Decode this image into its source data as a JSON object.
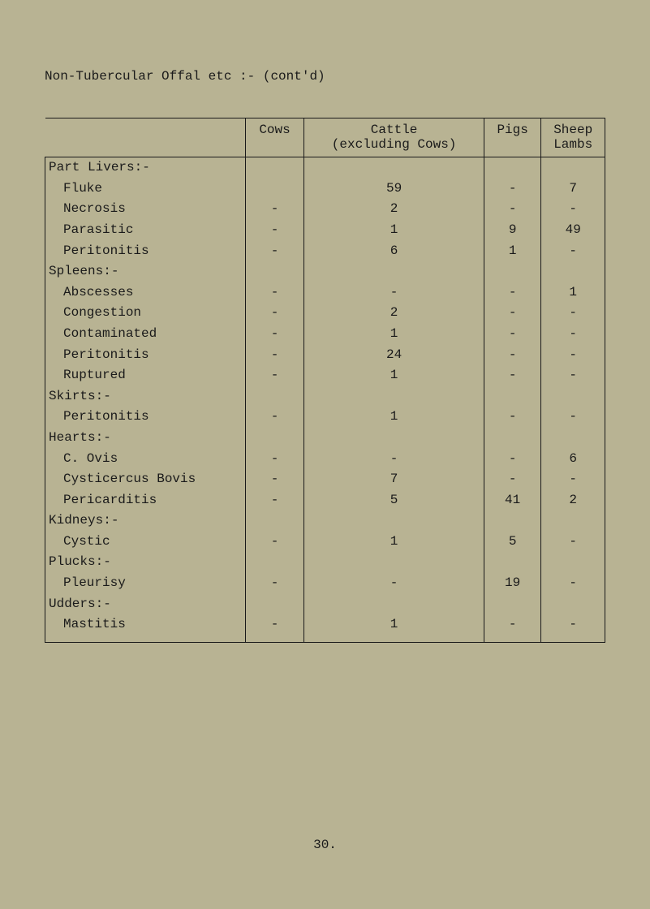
{
  "title": "Non-Tubercular Offal etc  :-  (cont'd)",
  "columns": {
    "cows": "Cows",
    "cattle_l1": "Cattle",
    "cattle_l2": "(excluding Cows)",
    "pigs": "Pigs",
    "sheep_l1": "Sheep",
    "sheep_l2": "Lambs"
  },
  "rows": [
    {
      "type": "section",
      "label": "Part Livers:-"
    },
    {
      "type": "data",
      "label": "Fluke",
      "cows": "",
      "cattle": "59",
      "pigs": "-",
      "sheep": "7"
    },
    {
      "type": "data",
      "label": "Necrosis",
      "cows": "-",
      "cattle": "2",
      "pigs": "-",
      "sheep": "-"
    },
    {
      "type": "data",
      "label": "Parasitic",
      "cows": "-",
      "cattle": "1",
      "pigs": "9",
      "sheep": "49"
    },
    {
      "type": "data",
      "label": "Peritonitis",
      "cows": "-",
      "cattle": "6",
      "pigs": "1",
      "sheep": "-"
    },
    {
      "type": "section",
      "label": "Spleens:-"
    },
    {
      "type": "data",
      "label": "Abscesses",
      "cows": "-",
      "cattle": "-",
      "pigs": "-",
      "sheep": "1"
    },
    {
      "type": "data",
      "label": "Congestion",
      "cows": "-",
      "cattle": "2",
      "pigs": "-",
      "sheep": "-"
    },
    {
      "type": "data",
      "label": "Contaminated",
      "cows": "-",
      "cattle": "1",
      "pigs": "-",
      "sheep": "-"
    },
    {
      "type": "data",
      "label": "Peritonitis",
      "cows": "-",
      "cattle": "24",
      "pigs": "-",
      "sheep": "-"
    },
    {
      "type": "data",
      "label": "Ruptured",
      "cows": "-",
      "cattle": "1",
      "pigs": "-",
      "sheep": "-"
    },
    {
      "type": "section",
      "label": "Skirts:-"
    },
    {
      "type": "data",
      "label": "Peritonitis",
      "cows": "-",
      "cattle": "1",
      "pigs": "-",
      "sheep": "-"
    },
    {
      "type": "section",
      "label": "Hearts:-"
    },
    {
      "type": "data",
      "label": "C. Ovis",
      "cows": "-",
      "cattle": "-",
      "pigs": "-",
      "sheep": "6"
    },
    {
      "type": "data",
      "label": "Cysticercus Bovis",
      "cows": "-",
      "cattle": "7",
      "pigs": "-",
      "sheep": "-"
    },
    {
      "type": "data",
      "label": "Pericarditis",
      "cows": "-",
      "cattle": "5",
      "pigs": "41",
      "sheep": "2"
    },
    {
      "type": "section",
      "label": "Kidneys:-"
    },
    {
      "type": "data",
      "label": "Cystic",
      "cows": "-",
      "cattle": "1",
      "pigs": "5",
      "sheep": "-"
    },
    {
      "type": "section",
      "label": "Plucks:-"
    },
    {
      "type": "data",
      "label": "Pleurisy",
      "cows": "-",
      "cattle": "-",
      "pigs": "19",
      "sheep": "-"
    },
    {
      "type": "section",
      "label": "Udders:-"
    },
    {
      "type": "data",
      "label": "Mastitis",
      "cows": "-",
      "cattle": "1",
      "pigs": "-",
      "sheep": "-"
    }
  ],
  "page_number": "30.",
  "style": {
    "background_color": "#b8b393",
    "text_color": "#1a1a1a",
    "border_color": "#1a1a1a",
    "font_family": "Courier New",
    "title_fontsize": 16,
    "cell_fontsize": 16
  }
}
